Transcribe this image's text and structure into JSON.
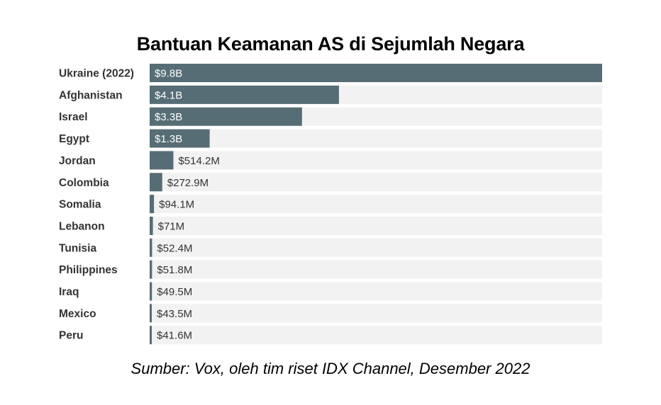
{
  "chart_data": {
    "type": "bar",
    "orientation": "horizontal",
    "title": "Bantuan Keamanan AS di Sejumlah Negara",
    "source": "Sumber: Vox, oleh tim riset IDX Channel, Desember 2022",
    "categories": [
      "Ukraine (2022)",
      "Afghanistan",
      "Israel",
      "Egypt",
      "Jordan",
      "Colombia",
      "Somalia",
      "Lebanon",
      "Tunisia",
      "Philippines",
      "Iraq",
      "Mexico",
      "Peru"
    ],
    "values": [
      9800,
      4100,
      3300,
      1300,
      514.2,
      272.9,
      94.1,
      71,
      52.4,
      51.8,
      49.5,
      43.5,
      41.6
    ],
    "value_unit": "million USD",
    "value_labels": [
      "$9.8B",
      "$4.1B",
      "$3.3B",
      "$1.3B",
      "$514.2M",
      "$272.9M",
      "$94.1M",
      "$71M",
      "$52.4M",
      "$51.8M",
      "$49.5M",
      "$43.5M",
      "$41.6M"
    ],
    "xlim": [
      0,
      9800
    ],
    "grid": false,
    "legend": "none",
    "colors": {
      "bar": "#566d75",
      "track": "#f2f2f2",
      "label_inside": "#ffffff",
      "label_outside": "#333333"
    }
  }
}
